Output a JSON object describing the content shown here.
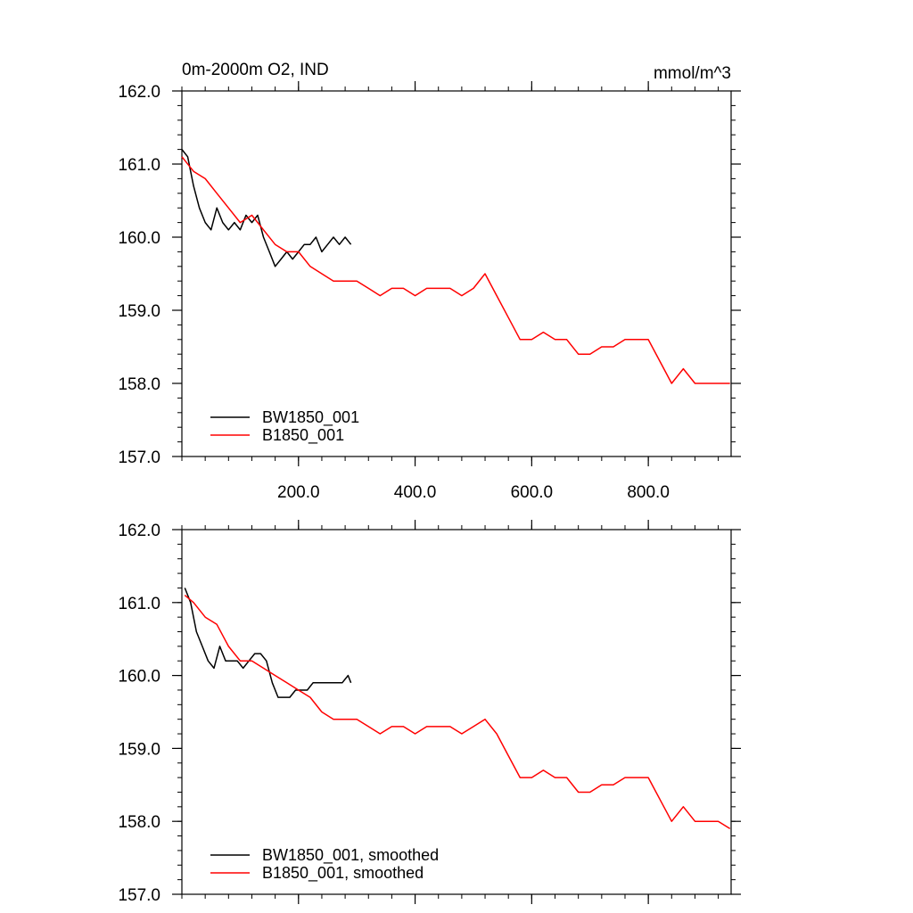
{
  "chart_data": [
    {
      "type": "line",
      "title": "0m-2000m O2, IND",
      "units": "mmol/m^3",
      "xlim": [
        0,
        942
      ],
      "ylim": [
        157.0,
        162.0
      ],
      "xticks": [
        200,
        400,
        600,
        800
      ],
      "xtick_labels": [
        "200.0",
        "400.0",
        "600.0",
        "800.0"
      ],
      "yticks": [
        157,
        158,
        159,
        160,
        161,
        162
      ],
      "ytick_labels": [
        "157.0",
        "158.0",
        "159.0",
        "160.0",
        "161.0",
        "162.0"
      ],
      "legend_position": "bottom-left",
      "series": [
        {
          "name": "BW1850_001",
          "color": "#000000",
          "x": [
            0,
            10,
            20,
            30,
            40,
            50,
            60,
            70,
            80,
            90,
            100,
            110,
            120,
            130,
            140,
            150,
            160,
            170,
            180,
            190,
            200,
            210,
            220,
            230,
            240,
            250,
            260,
            270,
            280,
            290
          ],
          "y": [
            161.2,
            161.1,
            160.7,
            160.4,
            160.2,
            160.1,
            160.4,
            160.2,
            160.1,
            160.2,
            160.1,
            160.3,
            160.2,
            160.3,
            160.0,
            159.8,
            159.6,
            159.7,
            159.8,
            159.7,
            159.8,
            159.9,
            159.9,
            160.0,
            159.8,
            159.9,
            160.0,
            159.9,
            160.0,
            159.9
          ]
        },
        {
          "name": "B1850_001",
          "color": "#ff0000",
          "x": [
            0,
            20,
            40,
            60,
            80,
            100,
            120,
            140,
            160,
            180,
            200,
            220,
            240,
            260,
            280,
            300,
            320,
            340,
            360,
            380,
            400,
            420,
            440,
            460,
            480,
            500,
            520,
            540,
            560,
            580,
            600,
            620,
            640,
            660,
            680,
            700,
            720,
            740,
            760,
            780,
            800,
            820,
            840,
            860,
            880,
            900,
            920,
            940
          ],
          "y": [
            161.1,
            160.9,
            160.8,
            160.6,
            160.4,
            160.2,
            160.3,
            160.1,
            159.9,
            159.8,
            159.8,
            159.6,
            159.5,
            159.4,
            159.4,
            159.4,
            159.3,
            159.2,
            159.3,
            159.3,
            159.2,
            159.3,
            159.3,
            159.3,
            159.2,
            159.3,
            159.5,
            159.2,
            158.9,
            158.6,
            158.6,
            158.7,
            158.6,
            158.6,
            158.4,
            158.4,
            158.5,
            158.5,
            158.6,
            158.6,
            158.6,
            158.3,
            158.0,
            158.2,
            158.0,
            158.0,
            158.0,
            158.0
          ]
        }
      ]
    },
    {
      "type": "line",
      "xlim": [
        0,
        942
      ],
      "ylim": [
        157.0,
        162.0
      ],
      "xticks": [
        200,
        400,
        600,
        800
      ],
      "yticks": [
        157,
        158,
        159,
        160,
        161,
        162
      ],
      "ytick_labels": [
        "157.0",
        "158.0",
        "159.0",
        "160.0",
        "161.0",
        "162.0"
      ],
      "legend_position": "bottom-left",
      "series": [
        {
          "name": "BW1850_001, smoothed",
          "color": "#000000",
          "x": [
            5,
            15,
            25,
            35,
            45,
            55,
            65,
            75,
            85,
            95,
            105,
            115,
            125,
            135,
            145,
            155,
            165,
            175,
            185,
            195,
            205,
            215,
            225,
            235,
            245,
            255,
            265,
            275,
            285,
            290
          ],
          "y": [
            161.2,
            161.0,
            160.6,
            160.4,
            160.2,
            160.1,
            160.4,
            160.2,
            160.2,
            160.2,
            160.1,
            160.2,
            160.3,
            160.3,
            160.2,
            159.9,
            159.7,
            159.7,
            159.7,
            159.8,
            159.8,
            159.8,
            159.9,
            159.9,
            159.9,
            159.9,
            159.9,
            159.9,
            160.0,
            159.9
          ]
        },
        {
          "name": "B1850_001, smoothed",
          "color": "#ff0000",
          "x": [
            5,
            20,
            40,
            60,
            80,
            100,
            120,
            140,
            160,
            180,
            200,
            220,
            240,
            260,
            280,
            300,
            320,
            340,
            360,
            380,
            400,
            420,
            440,
            460,
            480,
            500,
            520,
            540,
            560,
            580,
            600,
            620,
            640,
            660,
            680,
            700,
            720,
            740,
            760,
            780,
            800,
            820,
            840,
            860,
            880,
            900,
            920,
            940
          ],
          "y": [
            161.1,
            161.0,
            160.8,
            160.7,
            160.4,
            160.2,
            160.2,
            160.1,
            160.0,
            159.9,
            159.8,
            159.7,
            159.5,
            159.4,
            159.4,
            159.4,
            159.3,
            159.2,
            159.3,
            159.3,
            159.2,
            159.3,
            159.3,
            159.3,
            159.2,
            159.3,
            159.4,
            159.2,
            158.9,
            158.6,
            158.6,
            158.7,
            158.6,
            158.6,
            158.4,
            158.4,
            158.5,
            158.5,
            158.6,
            158.6,
            158.6,
            158.3,
            158.0,
            158.2,
            158.0,
            158.0,
            158.0,
            157.9
          ]
        }
      ]
    }
  ]
}
